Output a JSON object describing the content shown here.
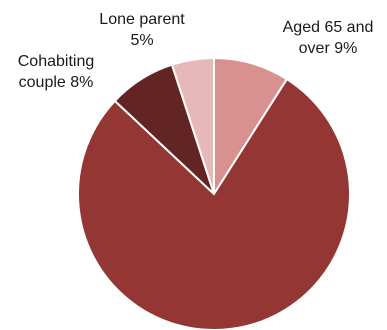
{
  "chart_data": {
    "type": "pie",
    "title": "",
    "slices": [
      {
        "name": "Aged 65 and over",
        "value": 9,
        "label_lines": [
          "Aged 65 and",
          "over 9%"
        ],
        "color": "#d9918f"
      },
      {
        "name": "Unlabelled",
        "value": 78,
        "label_lines": [],
        "color": "#943634"
      },
      {
        "name": "Cohabiting couple",
        "value": 8,
        "label_lines": [
          "Cohabiting",
          "couple 8%"
        ],
        "color": "#632523"
      },
      {
        "name": "Lone parent",
        "value": 5,
        "label_lines": [
          "Lone parent",
          "5%"
        ],
        "color": "#e6b9b8"
      }
    ]
  }
}
